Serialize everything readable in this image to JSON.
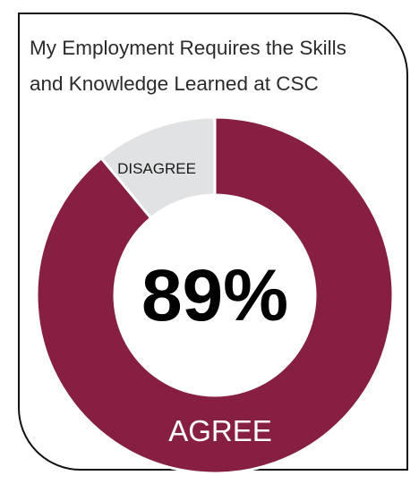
{
  "chart_data": {
    "type": "pie",
    "title": "My Employment Requires the Skills and Knowledge Learned at CSC",
    "center_label": "89%",
    "slices": [
      {
        "label": "AGREE",
        "value": 89,
        "color": "#861f41"
      },
      {
        "label": "DISAGREE",
        "value": 11,
        "color": "#e1e2e3"
      }
    ]
  }
}
